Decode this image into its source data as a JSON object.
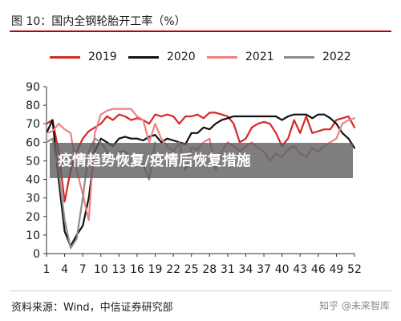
{
  "figure": {
    "title": "图 10：国内全钢轮胎开工率（%）",
    "source": "资料来源：Wind，中信证券研究部",
    "overlay_text": "疫情趋势恢复/疫情后恢复措施",
    "watermark": "知乎 @未来智库"
  },
  "colors": {
    "title_rule": "#c00000",
    "series_2019": "#d62728",
    "series_2020": "#111111",
    "series_2021": "#f08080",
    "series_2022": "#8c8c8c"
  },
  "chart_data": {
    "type": "line",
    "title": "图 10：国内全钢轮胎开工率（%）",
    "xlabel": "",
    "ylabel": "",
    "xlim": [
      1,
      52
    ],
    "ylim": [
      0,
      90
    ],
    "x_ticks": [
      1,
      4,
      7,
      10,
      13,
      16,
      19,
      22,
      25,
      28,
      31,
      34,
      37,
      40,
      43,
      46,
      49,
      52
    ],
    "y_ticks": [
      0,
      10,
      20,
      30,
      40,
      50,
      60,
      70,
      80,
      90
    ],
    "grid": false,
    "legend_position": "top",
    "series": [
      {
        "name": "2019",
        "x": [
          1,
          2,
          3,
          4,
          5,
          6,
          7,
          8,
          9,
          10,
          11,
          12,
          13,
          14,
          15,
          16,
          17,
          18,
          19,
          20,
          21,
          22,
          23,
          24,
          25,
          26,
          27,
          28,
          29,
          30,
          31,
          32,
          33,
          34,
          35,
          36,
          37,
          38,
          39,
          40,
          41,
          42,
          43,
          44,
          45,
          46,
          47,
          48,
          49,
          50,
          51,
          52
        ],
        "y": [
          70,
          72,
          55,
          28,
          45,
          55,
          62,
          66,
          68,
          70,
          74,
          72,
          75,
          74,
          72,
          73,
          72,
          70,
          75,
          74,
          75,
          74,
          70,
          74,
          74,
          75,
          73,
          76,
          76,
          75,
          74,
          70,
          60,
          62,
          68,
          70,
          71,
          70,
          65,
          58,
          62,
          72,
          65,
          74,
          65,
          66,
          67,
          67,
          72,
          73,
          74,
          68
        ]
      },
      {
        "name": "2020",
        "x": [
          1,
          2,
          3,
          4,
          5,
          6,
          7,
          8,
          9,
          10,
          11,
          12,
          13,
          14,
          15,
          16,
          17,
          18,
          19,
          20,
          21,
          22,
          23,
          24,
          25,
          26,
          27,
          28,
          29,
          30,
          31,
          32,
          33,
          34,
          35,
          36,
          37,
          38,
          39,
          40,
          41,
          42,
          43,
          44,
          45,
          46,
          47,
          48,
          49,
          50,
          51,
          52
        ],
        "y": [
          65,
          72,
          40,
          12,
          4,
          10,
          15,
          30,
          55,
          62,
          60,
          58,
          62,
          63,
          62,
          62,
          61,
          63,
          64,
          60,
          62,
          61,
          60,
          59,
          65,
          65,
          68,
          67,
          70,
          72,
          73,
          74,
          74,
          74,
          74,
          74,
          74,
          74,
          74,
          72,
          74,
          75,
          75,
          75,
          73,
          75,
          75,
          73,
          70,
          65,
          62,
          57
        ]
      },
      {
        "name": "2021",
        "x": [
          1,
          2,
          3,
          4,
          5,
          6,
          7,
          8,
          9,
          10,
          11,
          12,
          13,
          14,
          15,
          16,
          17,
          18,
          19,
          20,
          21,
          22,
          23,
          24,
          25,
          26,
          27,
          28,
          29,
          30,
          31,
          32,
          33,
          34,
          35,
          36,
          37,
          38,
          39,
          40,
          41,
          42,
          43,
          44,
          45,
          46,
          47,
          48,
          49,
          50,
          51,
          52
        ],
        "y": [
          65,
          66,
          70,
          67,
          65,
          45,
          32,
          18,
          65,
          75,
          77,
          78,
          78,
          78,
          78,
          74,
          72,
          60,
          70,
          62,
          58,
          55,
          60,
          45,
          57,
          56,
          60,
          62,
          45,
          55,
          60,
          58,
          55,
          58,
          60,
          57,
          55,
          50,
          54,
          52,
          56,
          58,
          54,
          52,
          57,
          55,
          58,
          60,
          62,
          70,
          72,
          73
        ]
      },
      {
        "name": "2022",
        "x": [
          1,
          2,
          3,
          4,
          5,
          6,
          7,
          8,
          9,
          10,
          11,
          12,
          13,
          14,
          15,
          16,
          17,
          18,
          19
        ],
        "y": [
          60,
          62,
          45,
          18,
          3,
          8,
          30,
          55,
          62,
          60,
          55,
          50,
          55,
          55,
          52,
          50,
          48,
          40,
          60
        ]
      }
    ]
  }
}
